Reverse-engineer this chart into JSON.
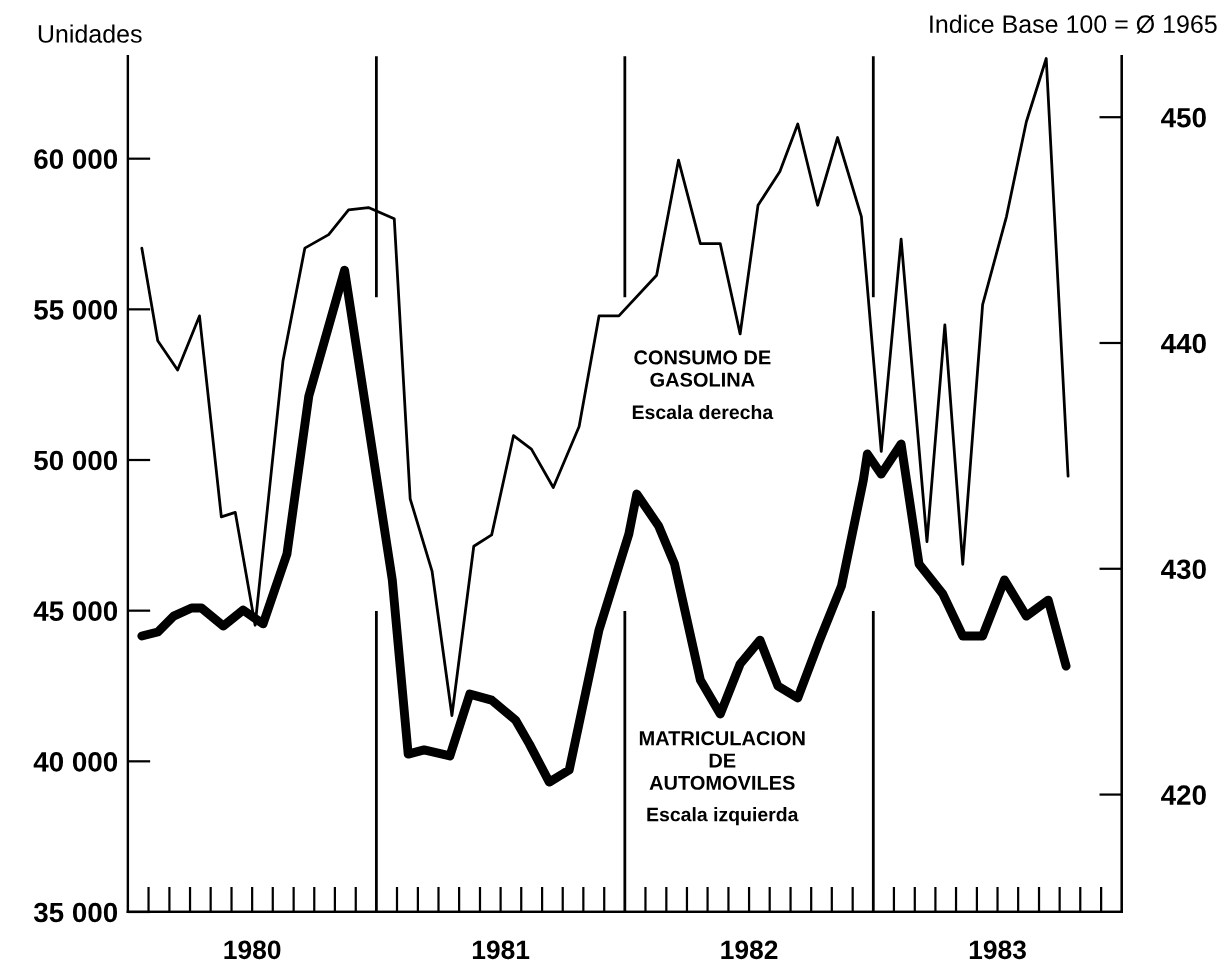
{
  "chart_data": {
    "type": "line",
    "ylabel": "Unidades",
    "y2label": "Indice Base 100 = Ø 1965",
    "series": [
      {
        "name": "MATRICULACION\nDE\nAUTOMOVILES",
        "color": "#000000",
        "axis": "y",
        "x": [
          1980.056,
          1980.12,
          1980.184,
          1980.256,
          1980.296,
          1980.384,
          1980.464,
          1980.544,
          1980.64,
          1980.728,
          1980.872,
          1981.064,
          1981.128,
          1981.192,
          1981.296,
          1981.376,
          1981.464,
          1981.56,
          1981.616,
          1981.696,
          1981.776,
          1981.896,
          1982.016,
          1982.048,
          1982.136,
          1982.2,
          1982.304,
          1982.384,
          1982.464,
          1982.544,
          1982.616,
          1982.696,
          1982.784,
          1982.872,
          1982.96,
          1982.976,
          1983.032,
          1983.112,
          1983.184,
          1983.28,
          1983.36,
          1983.44,
          1983.528,
          1983.616,
          1983.704,
          1983.776
        ],
        "values": [
          44160,
          44290,
          44820,
          45090,
          45090,
          44490,
          45020,
          44560,
          46880,
          52120,
          56300,
          46020,
          40240,
          40380,
          40180,
          42230,
          42030,
          41370,
          40570,
          39310,
          39710,
          44360,
          47540,
          48870,
          47810,
          46550,
          42700,
          41570,
          43230,
          44020,
          42500,
          42100,
          44020,
          45820,
          49330,
          50200,
          49530,
          50530,
          46550,
          45550,
          44160,
          44160,
          46020,
          44820,
          45350,
          43160
        ]
      },
      {
        "name": "CONSUMO DE\nGASOLINA",
        "color": "#000000",
        "axis": "y2",
        "x": [
          1980.056,
          1980.12,
          1980.2,
          1980.288,
          1980.376,
          1980.432,
          1980.512,
          1980.624,
          1980.712,
          1980.808,
          1980.888,
          1980.968,
          1981.072,
          1981.136,
          1981.224,
          1981.304,
          1981.392,
          1981.464,
          1981.552,
          1981.624,
          1981.712,
          1981.816,
          1981.896,
          1981.976,
          1982.128,
          1982.216,
          1982.304,
          1982.384,
          1982.464,
          1982.536,
          1982.624,
          1982.696,
          1982.776,
          1982.856,
          1982.952,
          1983.032,
          1983.112,
          1983.216,
          1983.288,
          1983.36,
          1983.44,
          1983.536,
          1983.616,
          1983.696,
          1983.784
        ],
        "values": [
          444.2,
          440.1,
          438.8,
          441.2,
          432.3,
          432.5,
          427.5,
          439.2,
          444.2,
          444.8,
          445.9,
          446.0,
          445.5,
          433.1,
          429.9,
          423.5,
          431.0,
          431.5,
          435.9,
          435.3,
          433.6,
          436.3,
          441.2,
          441.2,
          443.0,
          448.1,
          444.4,
          444.4,
          440.4,
          446.1,
          447.6,
          449.7,
          446.1,
          449.1,
          445.6,
          435.2,
          444.6,
          431.2,
          440.8,
          430.2,
          441.7,
          445.6,
          449.8,
          452.6,
          434.1
        ]
      }
    ],
    "annotations": [
      "Escala izquierda",
      "Escala derecha"
    ],
    "xlim": [
      1980,
      1984
    ],
    "xticks": [
      {
        "value": 1980.083,
        "label": null
      },
      {
        "value": 1980.167,
        "label": null
      },
      {
        "value": 1980.25,
        "label": null
      },
      {
        "value": 1980.333,
        "label": null
      },
      {
        "value": 1980.417,
        "label": null
      },
      {
        "value": 1980.5,
        "label": "1980"
      },
      {
        "value": 1980.583,
        "label": null
      },
      {
        "value": 1980.667,
        "label": null
      },
      {
        "value": 1980.75,
        "label": null
      },
      {
        "value": 1980.833,
        "label": null
      },
      {
        "value": 1980.917,
        "label": null
      },
      {
        "value": 1981.083,
        "label": null
      },
      {
        "value": 1981.167,
        "label": null
      },
      {
        "value": 1981.25,
        "label": null
      },
      {
        "value": 1981.333,
        "label": null
      },
      {
        "value": 1981.417,
        "label": null
      },
      {
        "value": 1981.5,
        "label": "1981"
      },
      {
        "value": 1981.583,
        "label": null
      },
      {
        "value": 1981.667,
        "label": null
      },
      {
        "value": 1981.75,
        "label": null
      },
      {
        "value": 1981.833,
        "label": null
      },
      {
        "value": 1981.917,
        "label": null
      },
      {
        "value": 1982.083,
        "label": null
      },
      {
        "value": 1982.167,
        "label": null
      },
      {
        "value": 1982.25,
        "label": null
      },
      {
        "value": 1982.333,
        "label": null
      },
      {
        "value": 1982.417,
        "label": null
      },
      {
        "value": 1982.5,
        "label": "1982"
      },
      {
        "value": 1982.583,
        "label": null
      },
      {
        "value": 1982.667,
        "label": null
      },
      {
        "value": 1982.75,
        "label": null
      },
      {
        "value": 1982.833,
        "label": null
      },
      {
        "value": 1982.917,
        "label": null
      },
      {
        "value": 1983.083,
        "label": null
      },
      {
        "value": 1983.167,
        "label": null
      },
      {
        "value": 1983.25,
        "label": null
      },
      {
        "value": 1983.333,
        "label": null
      },
      {
        "value": 1983.417,
        "label": null
      },
      {
        "value": 1983.5,
        "label": "1983"
      },
      {
        "value": 1983.583,
        "label": null
      },
      {
        "value": 1983.667,
        "label": null
      },
      {
        "value": 1983.75,
        "label": null
      },
      {
        "value": 1983.833,
        "label": null
      },
      {
        "value": 1983.917,
        "label": null
      }
    ],
    "ylim": [
      35000,
      63400
    ],
    "yticks": [
      {
        "value": 35000,
        "label": "35 000"
      },
      {
        "value": 40000,
        "label": "40 000"
      },
      {
        "value": 45000,
        "label": "45 000"
      },
      {
        "value": 50000,
        "label": "50 000"
      },
      {
        "value": 55000,
        "label": "55 000"
      },
      {
        "value": 60000,
        "label": "60 000"
      }
    ],
    "y2lim": [
      414.8,
      452.7
    ],
    "y2ticks": [
      420,
      430,
      440,
      450
    ],
    "ref_lines": [
      {
        "axis": "x",
        "value": 1981,
        "color": "#000000"
      },
      {
        "axis": "x",
        "value": 1982,
        "color": "#000000"
      },
      {
        "axis": "x",
        "value": 1983,
        "color": "#000000"
      }
    ],
    "grid": false,
    "legend": false,
    "marker": "none",
    "line_style": "solid"
  }
}
